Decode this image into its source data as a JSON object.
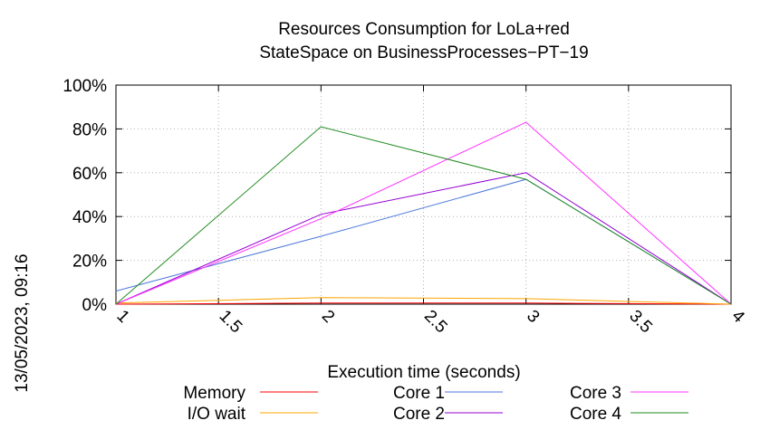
{
  "chart_data": {
    "type": "line",
    "title": [
      "Resources Consumption for LoLa+red",
      "StateSpace on BusinessProcesses−PT−19"
    ],
    "xlabel": "Execution time (seconds)",
    "ylabel": "",
    "xlim": [
      1,
      4
    ],
    "ylim": [
      0,
      100
    ],
    "xticks": [
      1,
      1.5,
      2,
      2.5,
      3,
      3.5,
      4
    ],
    "xtick_labels": [
      "1",
      "1.5",
      "2",
      "2.5",
      "3",
      "3.5",
      "4"
    ],
    "yticks": [
      0,
      20,
      40,
      60,
      80,
      100
    ],
    "ytick_labels": [
      "0%",
      "20%",
      "40%",
      "60%",
      "80%",
      "100%"
    ],
    "grid": true,
    "legend_position": "bottom",
    "series": [
      {
        "name": "Memory",
        "color": "#ff0000",
        "x": [
          1,
          2,
          3,
          4
        ],
        "y": [
          0,
          0.5,
          0.5,
          0
        ]
      },
      {
        "name": "I/O wait",
        "color": "#ffa500",
        "x": [
          1,
          2,
          3,
          4
        ],
        "y": [
          0.5,
          3,
          2.5,
          0
        ]
      },
      {
        "name": "Core 1",
        "color": "#4d79d9",
        "x": [
          1,
          2,
          3,
          4
        ],
        "y": [
          6,
          31,
          57,
          0
        ]
      },
      {
        "name": "Core 2",
        "color": "#9400d3",
        "x": [
          1,
          2,
          3,
          4
        ],
        "y": [
          0,
          41,
          60,
          0
        ]
      },
      {
        "name": "Core 3",
        "color": "#ff33ff",
        "x": [
          1,
          2,
          3,
          4
        ],
        "y": [
          0,
          39,
          83,
          0
        ]
      },
      {
        "name": "Core 4",
        "color": "#228b22",
        "x": [
          1,
          2,
          3,
          4
        ],
        "y": [
          0,
          81,
          57,
          0
        ]
      }
    ]
  },
  "timestamp": "13/05/2023, 09:16"
}
